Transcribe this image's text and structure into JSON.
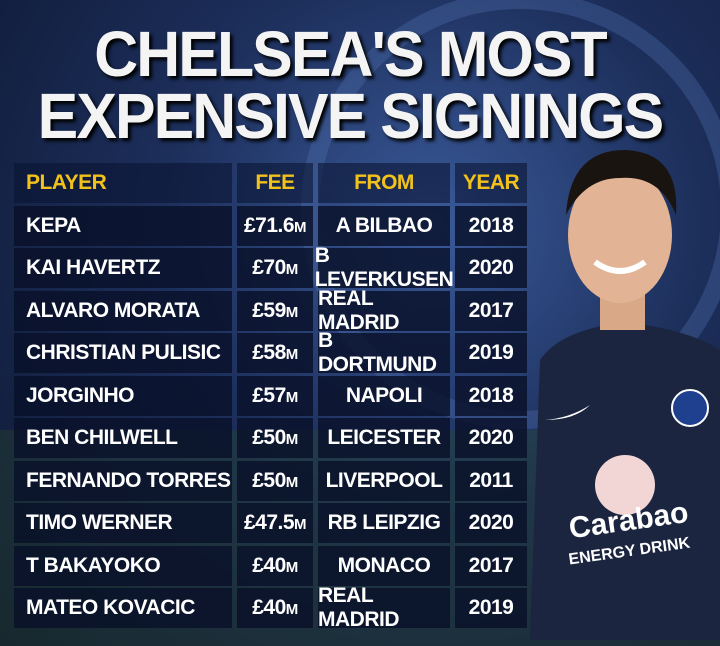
{
  "header": {
    "title_lines": [
      "CHELSEA'S MOST",
      "EXPENSIVE SIGNINGS"
    ]
  },
  "table": {
    "columns": [
      "PLAYER",
      "FEE",
      "FROM",
      "YEAR"
    ],
    "rows": [
      [
        "KEPA",
        "£71.6m",
        "A BILBAO",
        2018
      ],
      [
        "KAI HAVERTZ",
        "£70m",
        "B LEVERKUSEN",
        2020
      ],
      [
        "ALVARO MORATA",
        "£59m",
        "REAL MADRID",
        2017
      ],
      [
        "CHRISTIAN PULISIC",
        "£58m",
        "B DORTMUND",
        2019
      ],
      [
        "JORGINHO",
        "£57m",
        "NAPOLI",
        2018
      ],
      [
        "BEN CHILWELL",
        "£50m",
        "LEICESTER",
        2020
      ],
      [
        "FERNANDO TORRES",
        "£50m",
        "LIVERPOOL",
        2011
      ],
      [
        "TIMO WERNER",
        "£47.5m",
        "RB LEIPZIG",
        2020
      ],
      [
        "T BAKAYOKO",
        "£40m",
        "MONACO",
        2017
      ],
      [
        "MATEO KOVACIC",
        "£40m",
        "REAL MADRID",
        2019
      ]
    ]
  },
  "shirt": {
    "sponsor": "Carabao",
    "sponsor_sub": "ENERGY DRINK"
  }
}
